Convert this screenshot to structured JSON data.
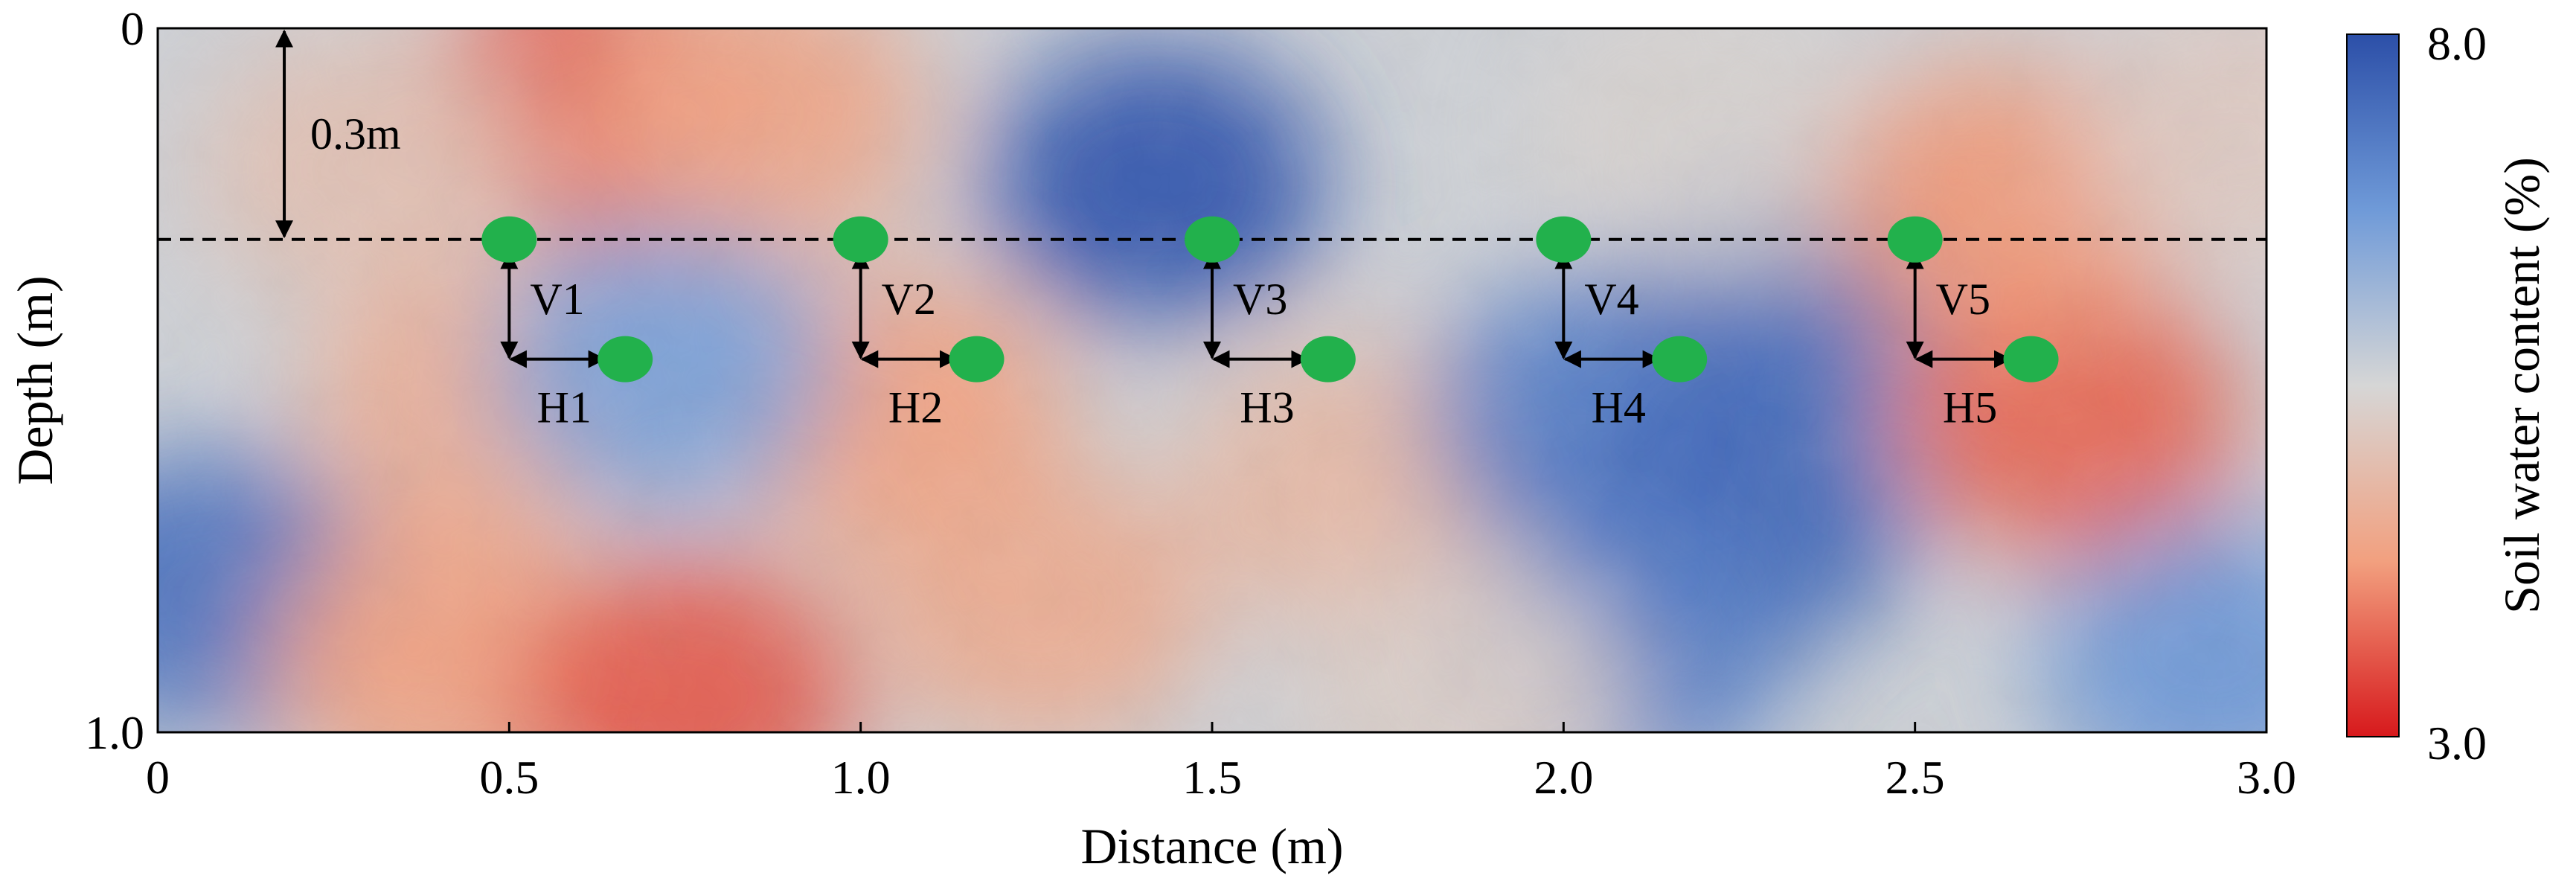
{
  "chart_data": {
    "type": "heatmap",
    "xlabel": "Distance (m)",
    "ylabel": "Depth (m)",
    "xlim": [
      0,
      3.0
    ],
    "ylim": [
      0,
      1.0
    ],
    "y_inverted": true,
    "x_ticks": [
      {
        "value": 0,
        "label": "0"
      },
      {
        "value": 0.5,
        "label": "0.5"
      },
      {
        "value": 1.0,
        "label": "1.0"
      },
      {
        "value": 1.5,
        "label": "1.5"
      },
      {
        "value": 2.0,
        "label": "2.0"
      },
      {
        "value": 2.5,
        "label": "2.5"
      },
      {
        "value": 3.0,
        "label": "3.0"
      }
    ],
    "y_ticks": [
      {
        "value": 0,
        "label": "0"
      },
      {
        "value": 1.0,
        "label": "1.0"
      }
    ],
    "colorbar": {
      "label": "Soil water content (%)",
      "min": 3.0,
      "max": 8.0,
      "min_label": "3.0",
      "max_label": "8.0",
      "colors": [
        "#d7191c",
        "#f2a07f",
        "#d6d6d6",
        "#6f9ad8",
        "#2c4fa8"
      ]
    },
    "depth_line": {
      "depth": 0.3,
      "label": "0.3m",
      "arrow_x": 0.18,
      "style": "dashed"
    },
    "sensor_groups": [
      {
        "top_x": 0.5,
        "bottom_x": 0.665,
        "top_depth": 0.3,
        "bottom_depth": 0.47,
        "v_label": "V1",
        "h_label": "H1"
      },
      {
        "top_x": 1.0,
        "bottom_x": 1.165,
        "top_depth": 0.3,
        "bottom_depth": 0.47,
        "v_label": "V2",
        "h_label": "H2"
      },
      {
        "top_x": 1.5,
        "bottom_x": 1.665,
        "top_depth": 0.3,
        "bottom_depth": 0.47,
        "v_label": "V3",
        "h_label": "H3"
      },
      {
        "top_x": 2.0,
        "bottom_x": 2.165,
        "top_depth": 0.3,
        "bottom_depth": 0.47,
        "v_label": "V4",
        "h_label": "H4"
      },
      {
        "top_x": 2.5,
        "bottom_x": 2.665,
        "top_depth": 0.3,
        "bottom_depth": 0.47,
        "v_label": "V5",
        "h_label": "H5"
      }
    ],
    "field_features": [
      {
        "x": 0.62,
        "depth": 0.1,
        "value": 3.6
      },
      {
        "x": 0.85,
        "depth": 0.12,
        "value": 4.4
      },
      {
        "x": 0.3,
        "depth": 0.2,
        "value": 5.0
      },
      {
        "x": 1.42,
        "depth": 0.22,
        "value": 7.9
      },
      {
        "x": 1.05,
        "depth": 0.55,
        "value": 4.3
      },
      {
        "x": 0.45,
        "depth": 0.55,
        "value": 4.6
      },
      {
        "x": 0.72,
        "depth": 0.48,
        "value": 6.6
      },
      {
        "x": 0.07,
        "depth": 0.8,
        "value": 7.4
      },
      {
        "x": 0.4,
        "depth": 0.9,
        "value": 4.3
      },
      {
        "x": 0.75,
        "depth": 0.95,
        "value": 3.6
      },
      {
        "x": 1.25,
        "depth": 0.82,
        "value": 4.5
      },
      {
        "x": 1.7,
        "depth": 0.65,
        "value": 4.8
      },
      {
        "x": 2.05,
        "depth": 0.55,
        "value": 7.2
      },
      {
        "x": 2.25,
        "depth": 0.7,
        "value": 7.6
      },
      {
        "x": 2.32,
        "depth": 0.35,
        "value": 7.5
      },
      {
        "x": 2.08,
        "depth": 0.88,
        "value": 7.2
      },
      {
        "x": 2.2,
        "depth": 0.15,
        "value": 5.4
      },
      {
        "x": 2.72,
        "depth": 0.55,
        "value": 3.7
      },
      {
        "x": 2.62,
        "depth": 0.25,
        "value": 4.2
      },
      {
        "x": 2.92,
        "depth": 0.9,
        "value": 6.8
      },
      {
        "x": 2.97,
        "depth": 0.15,
        "value": 5.2
      },
      {
        "x": 1.85,
        "depth": 0.95,
        "value": 5.3
      }
    ]
  }
}
